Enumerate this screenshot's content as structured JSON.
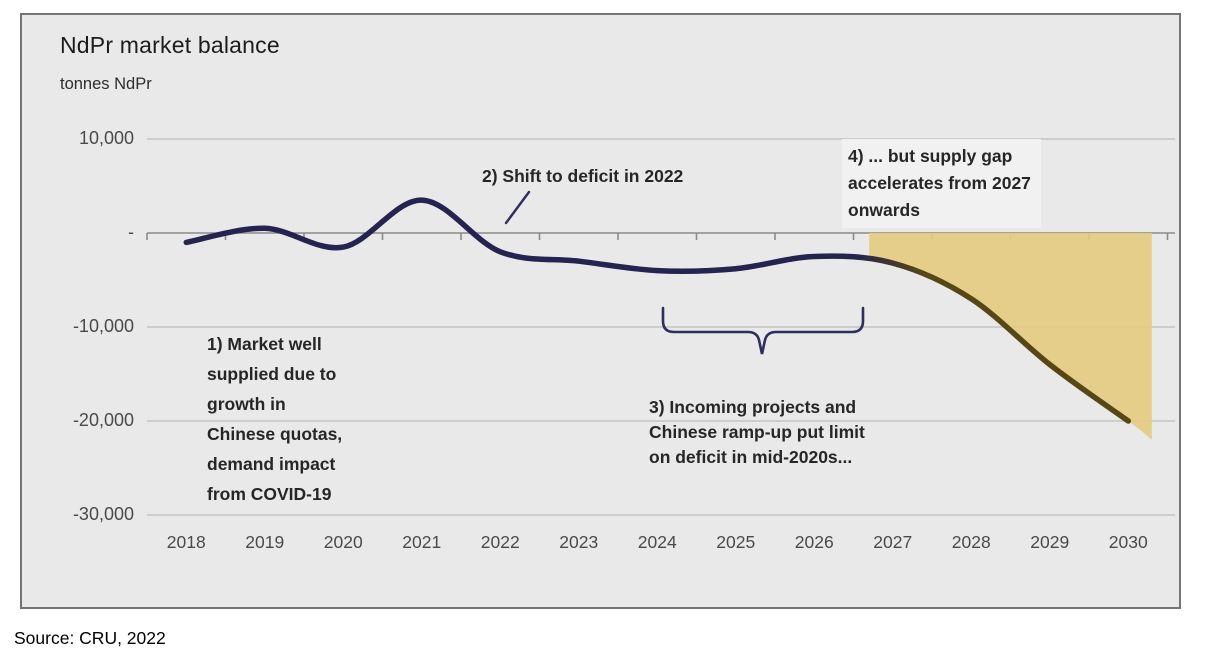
{
  "chart": {
    "title": "NdPr market balance",
    "unit_label": "tonnes NdPr",
    "source": "Source: CRU, 2022"
  },
  "chart_data": {
    "type": "line",
    "title": "NdPr market balance",
    "ylabel": "tonnes NdPr",
    "xlabel": "",
    "x": [
      2018,
      2019,
      2020,
      2021,
      2022,
      2023,
      2024,
      2025,
      2026,
      2027,
      2028,
      2029,
      2030
    ],
    "series": [
      {
        "name": "NdPr market balance (tonnes NdPr)",
        "values": [
          -1000,
          500,
          -1500,
          3500,
          -2000,
          -3000,
          -4000,
          -3800,
          -2500,
          -3200,
          -7000,
          -14000,
          -20000
        ]
      }
    ],
    "ylim": [
      -30000,
      10000
    ],
    "yticks": [
      {
        "value": 10000,
        "label": "10,000"
      },
      {
        "value": 0,
        "label": "-"
      },
      {
        "value": -10000,
        "label": "-10,000"
      },
      {
        "value": -20000,
        "label": "-20,000"
      },
      {
        "value": -30000,
        "label": "-30,000"
      }
    ],
    "grid": "horizontal gridlines on, zero axis emphasized with year ticks",
    "legend": "none",
    "supply_gap_area": {
      "description": "tan shaded wedge between zero line and curve",
      "from_year": 2026.7,
      "to_year": 2030.3,
      "baseline_value": 0
    }
  },
  "annotations": {
    "a1": {
      "lines": [
        "1) Market well",
        "supplied due to",
        "growth in",
        "Chinese quotas,",
        "demand impact",
        "from COVID-19"
      ]
    },
    "a2": {
      "lines": [
        "2) Shift to deficit in 2022"
      ]
    },
    "a3": {
      "lines": [
        "3) Incoming projects and",
        "Chinese ramp-up put limit",
        "on deficit in mid-2020s..."
      ]
    },
    "a4": {
      "lines": [
        "4) ... but supply gap",
        "accelerates from 2027",
        "onwards"
      ]
    }
  },
  "colors": {
    "panel_bg": "#e9e9e9",
    "panel_border": "#757575",
    "gridline": "#bdbdbd",
    "zero_axis": "#8a8a8a",
    "line_navy": "#252350",
    "line_brown": "#574716",
    "gap_fill": "#e4ca81",
    "annotation_ink": "#2e2e5f",
    "axis_text": "#4a4a4a"
  }
}
